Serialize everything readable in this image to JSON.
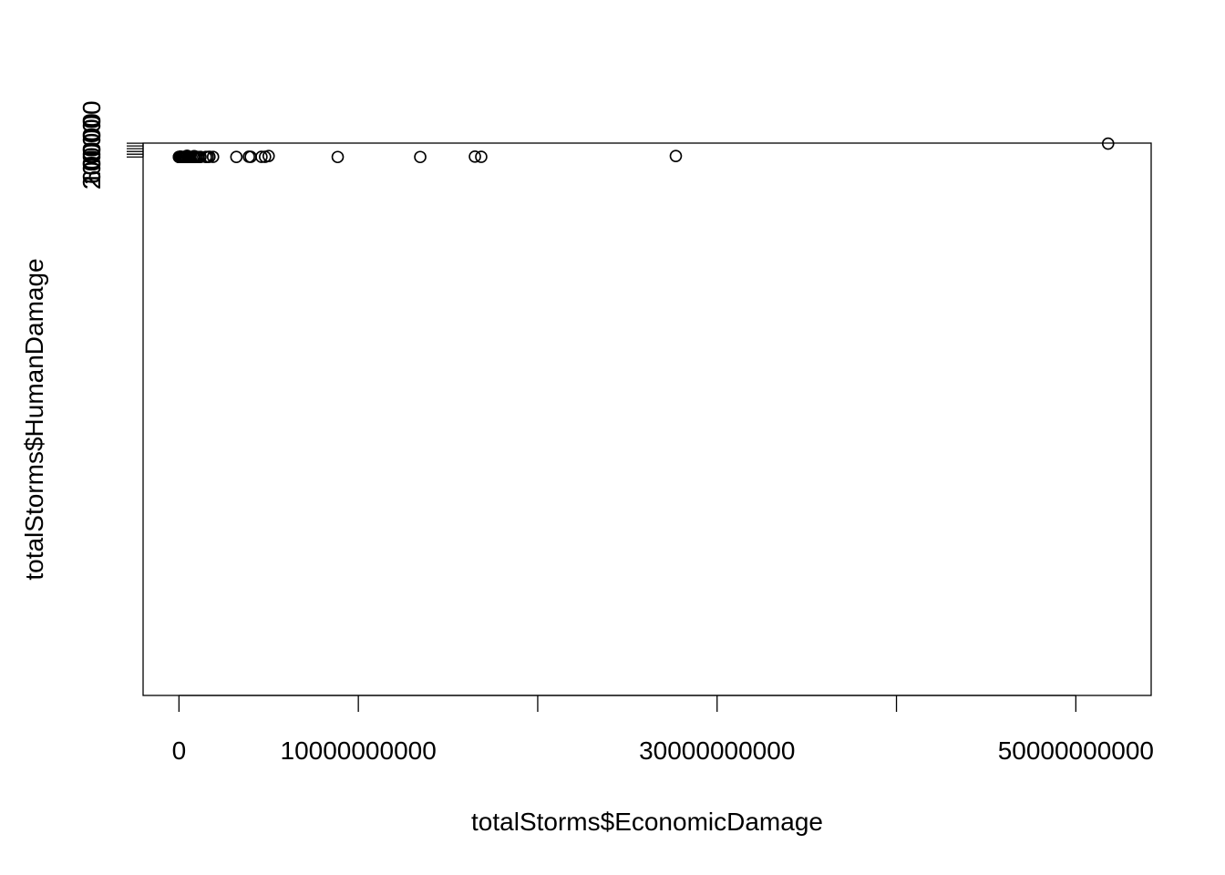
{
  "chart_data": {
    "type": "scatter",
    "xlabel": "totalStorms$EconomicDamage",
    "ylabel": "totalStorms$HumanDamage",
    "xlim": [
      -2000000000,
      54200000000
    ],
    "ylim": [
      -3900000,
      100600
    ],
    "x_ticks": [
      0,
      10000000000,
      20000000000,
      30000000000,
      40000000000,
      50000000000
    ],
    "x_tick_labels": [
      "0",
      "10000000000",
      "",
      "30000000000",
      "",
      "50000000000"
    ],
    "y_ticks": [
      0,
      20000,
      40000,
      60000,
      80000,
      100000
    ],
    "y_tick_labels": [
      "0",
      "20000",
      "",
      "60000",
      "",
      "100000"
    ],
    "point_shape": "open-circle",
    "point_color": "#000000",
    "points": [
      {
        "x": 0,
        "y": 0
      },
      {
        "x": 0,
        "y": 200
      },
      {
        "x": 0,
        "y": 500
      },
      {
        "x": 50000000,
        "y": 100
      },
      {
        "x": 80000000,
        "y": 2900
      },
      {
        "x": 100000000,
        "y": 300
      },
      {
        "x": 150000000,
        "y": 0
      },
      {
        "x": 200000000,
        "y": 600
      },
      {
        "x": 250000000,
        "y": 150
      },
      {
        "x": 300000000,
        "y": 50
      },
      {
        "x": 350000000,
        "y": 400
      },
      {
        "x": 400000000,
        "y": 100
      },
      {
        "x": 450000000,
        "y": 8600
      },
      {
        "x": 500000000,
        "y": 0
      },
      {
        "x": 550000000,
        "y": 700
      },
      {
        "x": 600000000,
        "y": 300
      },
      {
        "x": 700000000,
        "y": 200
      },
      {
        "x": 800000000,
        "y": 500
      },
      {
        "x": 850000000,
        "y": 6100
      },
      {
        "x": 900000000,
        "y": 100
      },
      {
        "x": 1000000000,
        "y": 800
      },
      {
        "x": 1100000000,
        "y": 0
      },
      {
        "x": 1200000000,
        "y": 400
      },
      {
        "x": 1500000000,
        "y": 200
      },
      {
        "x": 1600000000,
        "y": 800
      },
      {
        "x": 1700000000,
        "y": 1400
      },
      {
        "x": 1900000000,
        "y": 800
      },
      {
        "x": 3200000000,
        "y": 300
      },
      {
        "x": 3900000000,
        "y": 1900
      },
      {
        "x": 4000000000,
        "y": 1000
      },
      {
        "x": 4600000000,
        "y": 1300
      },
      {
        "x": 4800000000,
        "y": 1300
      },
      {
        "x": 5000000000,
        "y": 7300
      },
      {
        "x": 8850000000,
        "y": 0
      },
      {
        "x": 13450000000,
        "y": 0
      },
      {
        "x": 16500000000,
        "y": 2700
      },
      {
        "x": 16850000000,
        "y": 1300
      },
      {
        "x": 27700000000,
        "y": 7200
      },
      {
        "x": 51800000000,
        "y": 97000
      }
    ]
  }
}
